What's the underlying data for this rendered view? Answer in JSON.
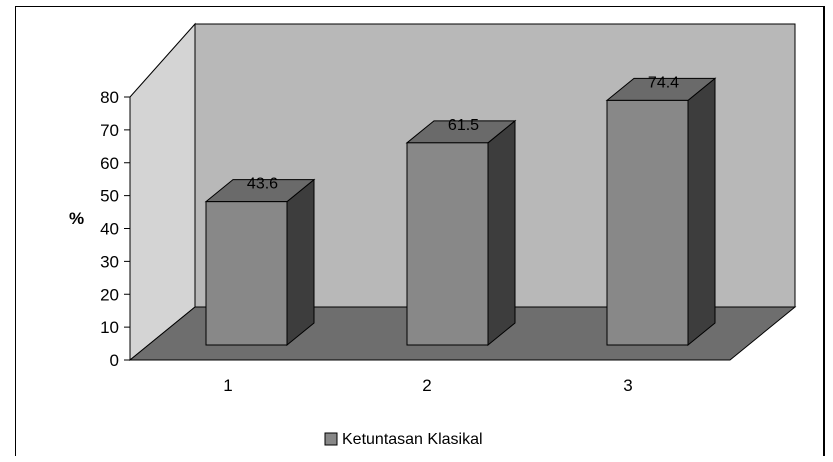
{
  "chart_data": {
    "type": "bar",
    "categories": [
      "1",
      "2",
      "3"
    ],
    "series": [
      {
        "name": "Ketuntasan Klasikal",
        "values": [
          43.6,
          61.5,
          74.4
        ]
      }
    ],
    "data_labels": [
      "43.6",
      "61.5",
      "74.4"
    ],
    "ylabel": "%",
    "ylim": [
      0,
      80
    ],
    "yticks": [
      "0",
      "10",
      "20",
      "30",
      "40",
      "50",
      "60",
      "70",
      "80"
    ],
    "legend_position": "bottom",
    "colors": {
      "bar_front": "#888888",
      "bar_side": "#3d3d3d",
      "bar_top": "#6a6a6a",
      "back_wall": "#b8b8b8",
      "side_wall": "#d4d4d4",
      "floor": "#6e6e6e"
    }
  }
}
